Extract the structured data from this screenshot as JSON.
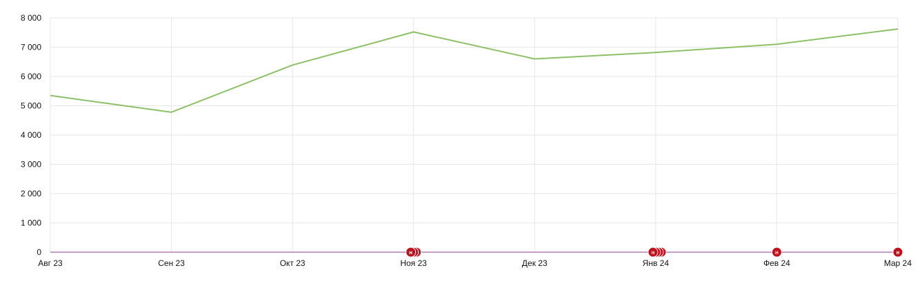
{
  "chart_data": {
    "type": "line",
    "categories": [
      "Авг 23",
      "Сен 23",
      "Окт 23",
      "Ноя 23",
      "Дек 23",
      "Янв 24",
      "Фев 24",
      "Мар 24"
    ],
    "series": [
      {
        "values": [
          5350,
          4780,
          6390,
          7520,
          6600,
          6820,
          7100,
          7620
        ],
        "color": "#8bc065"
      }
    ],
    "ylim": [
      0,
      8000
    ],
    "yticks": [
      0,
      1000,
      2000,
      3000,
      4000,
      5000,
      6000,
      7000,
      8000
    ],
    "ytick_labels": [
      "0",
      "1 000",
      "2 000",
      "3 000",
      "4 000",
      "5 000",
      "6 000",
      "7 000",
      "8 000"
    ],
    "grid": true,
    "baseline_color": "#8e3b8e",
    "markers": {
      "label": "н",
      "color": "#c0101c",
      "items": [
        {
          "category": "Ноя 23",
          "count": 3
        },
        {
          "category": "Янв 24",
          "count": 4
        },
        {
          "category": "Фев 24",
          "count": 1
        },
        {
          "category": "Мар 24",
          "count": 1
        }
      ]
    }
  }
}
